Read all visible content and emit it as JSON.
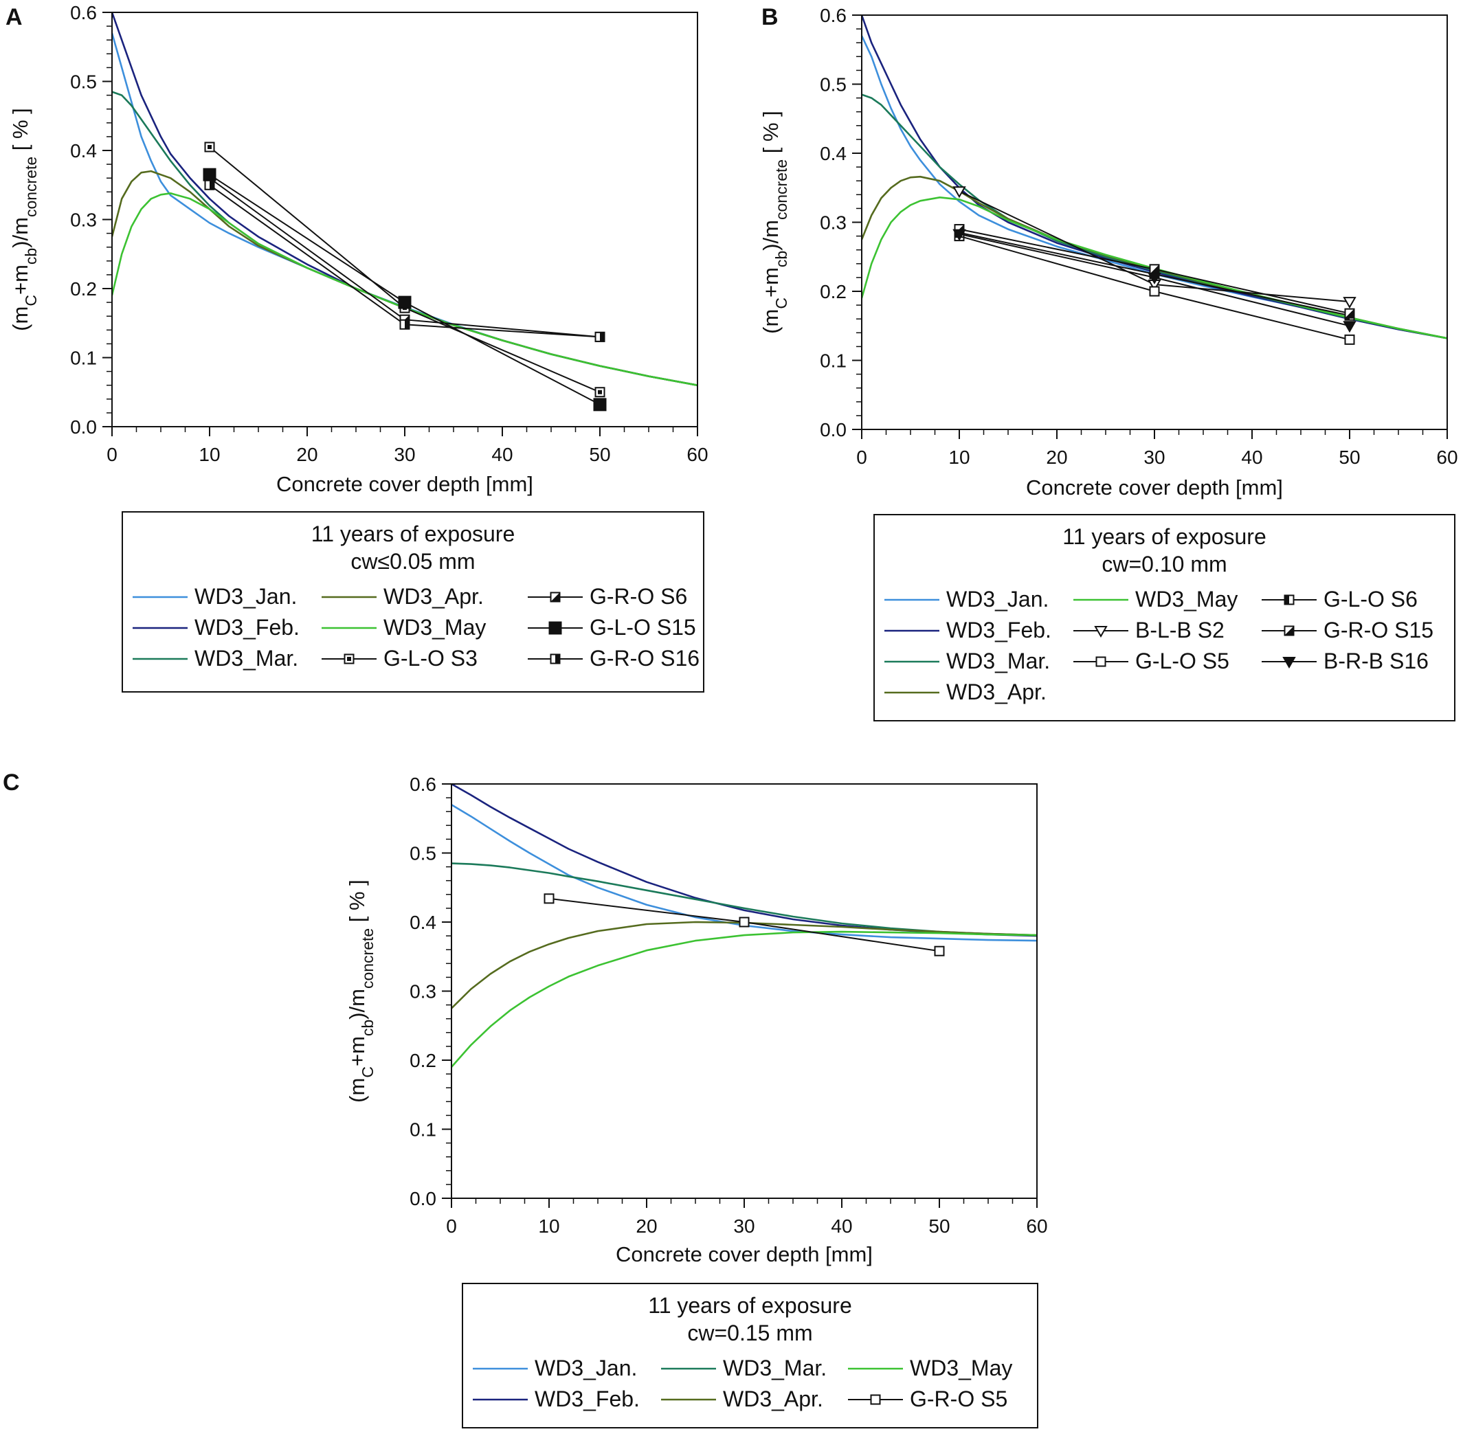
{
  "chart_data": [
    {
      "panel": "A",
      "type": "line",
      "xlabel": "Concrete cover depth [mm]",
      "ylabel": "(mc+mcb)/mconcrete [ % ]",
      "ylabel_parts": {
        "open": "(m",
        "sub1": "C",
        "plus": "+m",
        "sub2": "cb",
        "close": ")/m",
        "sub3": "concrete",
        "unit": " [ % ]"
      },
      "xlim": [
        0,
        60
      ],
      "ylim": [
        0,
        0.6
      ],
      "xticks": [
        "0",
        "10",
        "20",
        "30",
        "40",
        "50",
        "60"
      ],
      "yticks": [
        "0.0",
        "0.1",
        "0.2",
        "0.3",
        "0.4",
        "0.5",
        "0.6"
      ],
      "legend_title": [
        "11 years of exposure",
        "cw≤0.05 mm"
      ],
      "series": [
        {
          "name": "WD3_Jan.",
          "kind": "curve",
          "color": "#3d8fdc",
          "x": [
            0,
            1,
            2,
            3,
            4,
            5,
            6,
            8,
            10,
            12,
            15,
            20,
            25,
            30,
            35,
            40,
            45,
            50,
            55,
            60
          ],
          "values": [
            0.57,
            0.52,
            0.47,
            0.42,
            0.385,
            0.355,
            0.335,
            0.315,
            0.295,
            0.28,
            0.26,
            0.23,
            0.2,
            0.173,
            0.148,
            0.125,
            0.105,
            0.088,
            0.073,
            0.06
          ]
        },
        {
          "name": "WD3_Feb.",
          "kind": "curve",
          "color": "#1a237e",
          "x": [
            0,
            1,
            2,
            3,
            4,
            5,
            6,
            8,
            10,
            12,
            15,
            20,
            25,
            30,
            35,
            40,
            45,
            50,
            55,
            60
          ],
          "values": [
            0.6,
            0.56,
            0.52,
            0.48,
            0.45,
            0.42,
            0.395,
            0.36,
            0.33,
            0.305,
            0.275,
            0.235,
            0.2,
            0.172,
            0.147,
            0.125,
            0.105,
            0.088,
            0.073,
            0.06
          ]
        },
        {
          "name": "WD3_Mar.",
          "kind": "curve",
          "color": "#1b7a5a",
          "x": [
            0,
            1,
            2,
            3,
            4,
            5,
            6,
            8,
            10,
            12,
            15,
            20,
            25,
            30,
            35,
            40,
            45,
            50,
            55,
            60
          ],
          "values": [
            0.485,
            0.48,
            0.465,
            0.445,
            0.425,
            0.405,
            0.385,
            0.35,
            0.32,
            0.295,
            0.265,
            0.23,
            0.2,
            0.172,
            0.147,
            0.125,
            0.105,
            0.088,
            0.073,
            0.06
          ]
        },
        {
          "name": "WD3_Apr.",
          "kind": "curve",
          "color": "#556b1e",
          "x": [
            0,
            1,
            2,
            3,
            4,
            5,
            6,
            8,
            10,
            12,
            15,
            20,
            25,
            30,
            35,
            40,
            45,
            50,
            55,
            60
          ],
          "values": [
            0.275,
            0.33,
            0.355,
            0.368,
            0.37,
            0.365,
            0.36,
            0.34,
            0.315,
            0.29,
            0.262,
            0.23,
            0.2,
            0.172,
            0.147,
            0.125,
            0.105,
            0.088,
            0.073,
            0.06
          ]
        },
        {
          "name": "WD3_May",
          "kind": "curve",
          "color": "#3cc232",
          "x": [
            0,
            1,
            2,
            3,
            4,
            5,
            6,
            8,
            10,
            12,
            15,
            20,
            25,
            30,
            35,
            40,
            45,
            50,
            55,
            60
          ],
          "values": [
            0.19,
            0.25,
            0.29,
            0.315,
            0.33,
            0.336,
            0.338,
            0.33,
            0.315,
            0.295,
            0.265,
            0.23,
            0.2,
            0.172,
            0.147,
            0.125,
            0.105,
            0.088,
            0.073,
            0.06
          ]
        },
        {
          "name": "G-L-O S3",
          "kind": "markers",
          "marker": "sq-dot",
          "x": [
            10,
            30,
            50
          ],
          "values": [
            0.405,
            0.172,
            0.05
          ]
        },
        {
          "name": "G-R-O S6",
          "kind": "markers",
          "marker": "sq-diag",
          "x": [
            10,
            30,
            50
          ],
          "values": [
            0.36,
            0.155,
            0.13
          ]
        },
        {
          "name": "G-L-O S15",
          "kind": "markers",
          "marker": "sq-filled",
          "x": [
            10,
            30,
            50
          ],
          "values": [
            0.365,
            0.18,
            0.032
          ]
        },
        {
          "name": "G-R-O S16",
          "kind": "markers",
          "marker": "sq-half",
          "x": [
            10,
            30,
            50
          ],
          "values": [
            0.35,
            0.148,
            0.13
          ]
        }
      ],
      "legend_columns": [
        [
          "WD3_Jan.",
          "WD3_Feb.",
          "WD3_Mar."
        ],
        [
          "WD3_Apr.",
          "WD3_May",
          "G-L-O S3"
        ],
        [
          "G-R-O S6",
          "G-L-O S15",
          "G-R-O S16"
        ]
      ]
    },
    {
      "panel": "B",
      "type": "line",
      "xlabel": "Concrete cover depth [mm]",
      "ylabel": "(mc+mcb)/mconcrete [ % ]",
      "ylabel_parts": {
        "open": "(m",
        "sub1": "C",
        "plus": "+m",
        "sub2": "cb",
        "close": ")/m",
        "sub3": "concrete",
        "unit": " [ % ]"
      },
      "xlim": [
        0,
        60
      ],
      "ylim": [
        0,
        0.6
      ],
      "xticks": [
        "0",
        "10",
        "20",
        "30",
        "40",
        "50",
        "60"
      ],
      "yticks": [
        "0.0",
        "0.1",
        "0.2",
        "0.3",
        "0.4",
        "0.5",
        "0.6"
      ],
      "legend_title": [
        "11 years of exposure",
        "cw=0.10 mm"
      ],
      "series": [
        {
          "name": "WD3_Jan.",
          "kind": "curve",
          "color": "#3d8fdc",
          "x": [
            0,
            1,
            2,
            3,
            4,
            5,
            6,
            8,
            10,
            12,
            15,
            20,
            25,
            30,
            35,
            40,
            45,
            50,
            55,
            60
          ],
          "values": [
            0.57,
            0.54,
            0.5,
            0.465,
            0.435,
            0.41,
            0.39,
            0.355,
            0.33,
            0.31,
            0.29,
            0.265,
            0.245,
            0.225,
            0.208,
            0.192,
            0.177,
            0.16,
            0.145,
            0.132
          ]
        },
        {
          "name": "WD3_Feb.",
          "kind": "curve",
          "color": "#1a237e",
          "x": [
            0,
            1,
            2,
            3,
            4,
            5,
            6,
            8,
            10,
            12,
            15,
            20,
            25,
            30,
            35,
            40,
            45,
            50,
            55,
            60
          ],
          "values": [
            0.6,
            0.56,
            0.53,
            0.5,
            0.47,
            0.445,
            0.42,
            0.38,
            0.35,
            0.325,
            0.3,
            0.27,
            0.248,
            0.228,
            0.21,
            0.193,
            0.177,
            0.16,
            0.145,
            0.132
          ]
        },
        {
          "name": "WD3_Mar.",
          "kind": "curve",
          "color": "#1b7a5a",
          "x": [
            0,
            1,
            2,
            3,
            4,
            5,
            6,
            8,
            10,
            12,
            15,
            20,
            25,
            30,
            35,
            40,
            45,
            50,
            55,
            60
          ],
          "values": [
            0.485,
            0.48,
            0.47,
            0.455,
            0.44,
            0.425,
            0.41,
            0.38,
            0.355,
            0.332,
            0.305,
            0.273,
            0.25,
            0.23,
            0.212,
            0.195,
            0.178,
            0.161,
            0.146,
            0.132
          ]
        },
        {
          "name": "WD3_Apr.",
          "kind": "curve",
          "color": "#556b1e",
          "x": [
            0,
            1,
            2,
            3,
            4,
            5,
            6,
            8,
            10,
            12,
            15,
            20,
            25,
            30,
            35,
            40,
            45,
            50,
            55,
            60
          ],
          "values": [
            0.275,
            0.31,
            0.335,
            0.35,
            0.36,
            0.365,
            0.366,
            0.36,
            0.345,
            0.328,
            0.305,
            0.275,
            0.252,
            0.232,
            0.213,
            0.196,
            0.179,
            0.162,
            0.146,
            0.132
          ]
        },
        {
          "name": "WD3_May",
          "kind": "curve",
          "color": "#3cc232",
          "x": [
            0,
            1,
            2,
            3,
            4,
            5,
            6,
            8,
            10,
            12,
            15,
            20,
            25,
            30,
            35,
            40,
            45,
            50,
            55,
            60
          ],
          "values": [
            0.19,
            0.24,
            0.275,
            0.3,
            0.315,
            0.325,
            0.331,
            0.336,
            0.333,
            0.323,
            0.303,
            0.275,
            0.253,
            0.233,
            0.214,
            0.196,
            0.179,
            0.162,
            0.146,
            0.132
          ]
        },
        {
          "name": "B-L-B S2",
          "kind": "markers",
          "marker": "tri-open",
          "x": [
            10,
            30,
            50
          ],
          "values": [
            0.345,
            0.21,
            0.185
          ]
        },
        {
          "name": "G-L-O S5",
          "kind": "markers",
          "marker": "sq-open",
          "x": [
            10,
            30,
            50
          ],
          "values": [
            0.28,
            0.2,
            0.13
          ]
        },
        {
          "name": "G-L-O S6",
          "kind": "markers",
          "marker": "sq-vhalf",
          "x": [
            10,
            30,
            50
          ],
          "values": [
            0.285,
            0.225,
            0.165
          ]
        },
        {
          "name": "G-R-O S15",
          "kind": "markers",
          "marker": "sq-diag",
          "x": [
            10,
            30,
            50
          ],
          "values": [
            0.29,
            0.232,
            0.168
          ]
        },
        {
          "name": "B-R-B S16",
          "kind": "markers",
          "marker": "tri-filled",
          "x": [
            10,
            30,
            50
          ],
          "values": [
            0.283,
            0.22,
            0.15
          ]
        }
      ],
      "legend_columns": [
        [
          "WD3_Jan.",
          "WD3_Feb.",
          "WD3_Mar.",
          "WD3_Apr."
        ],
        [
          "WD3_May",
          "B-L-B S2",
          "G-L-O S5"
        ],
        [
          "G-L-O S6",
          "G-R-O S15",
          "B-R-B S16"
        ]
      ]
    },
    {
      "panel": "C",
      "type": "line",
      "xlabel": "Concrete cover depth [mm]",
      "ylabel": "(mc+mcb)/mconcrete [ % ]",
      "ylabel_parts": {
        "open": "(m",
        "sub1": "C",
        "plus": "+m",
        "sub2": "cb",
        "close": ")/m",
        "sub3": "concrete",
        "unit": " [ % ]"
      },
      "xlim": [
        0,
        60
      ],
      "ylim": [
        0,
        0.6
      ],
      "xticks": [
        "0",
        "10",
        "20",
        "30",
        "40",
        "50",
        "60"
      ],
      "yticks": [
        "0.0",
        "0.1",
        "0.2",
        "0.3",
        "0.4",
        "0.5",
        "0.6"
      ],
      "legend_title": [
        "11 years of exposure",
        "cw=0.15 mm"
      ],
      "series": [
        {
          "name": "WD3_Jan.",
          "kind": "curve",
          "color": "#3d8fdc",
          "x": [
            0,
            2,
            4,
            6,
            8,
            10,
            12,
            15,
            20,
            25,
            30,
            35,
            40,
            45,
            50,
            55,
            60
          ],
          "values": [
            0.57,
            0.553,
            0.535,
            0.517,
            0.5,
            0.484,
            0.468,
            0.45,
            0.425,
            0.407,
            0.395,
            0.387,
            0.382,
            0.378,
            0.376,
            0.374,
            0.373
          ]
        },
        {
          "name": "WD3_Feb.",
          "kind": "curve",
          "color": "#1a237e",
          "x": [
            0,
            2,
            4,
            6,
            8,
            10,
            12,
            15,
            20,
            25,
            30,
            35,
            40,
            45,
            50,
            55,
            60
          ],
          "values": [
            0.6,
            0.584,
            0.567,
            0.551,
            0.536,
            0.521,
            0.506,
            0.487,
            0.458,
            0.435,
            0.417,
            0.404,
            0.395,
            0.389,
            0.385,
            0.382,
            0.38
          ]
        },
        {
          "name": "WD3_Mar.",
          "kind": "curve",
          "color": "#1b7a5a",
          "x": [
            0,
            2,
            4,
            6,
            8,
            10,
            12,
            15,
            20,
            25,
            30,
            35,
            40,
            45,
            50,
            55,
            60
          ],
          "values": [
            0.485,
            0.484,
            0.482,
            0.479,
            0.475,
            0.471,
            0.466,
            0.459,
            0.446,
            0.433,
            0.42,
            0.408,
            0.398,
            0.391,
            0.386,
            0.383,
            0.381
          ]
        },
        {
          "name": "WD3_Apr.",
          "kind": "curve",
          "color": "#556b1e",
          "x": [
            0,
            2,
            4,
            6,
            8,
            10,
            12,
            15,
            20,
            25,
            30,
            35,
            40,
            45,
            50,
            55,
            60
          ],
          "values": [
            0.275,
            0.303,
            0.325,
            0.343,
            0.357,
            0.368,
            0.377,
            0.387,
            0.397,
            0.4,
            0.399,
            0.396,
            0.393,
            0.389,
            0.386,
            0.383,
            0.381
          ]
        },
        {
          "name": "WD3_May",
          "kind": "curve",
          "color": "#3cc232",
          "x": [
            0,
            2,
            4,
            6,
            8,
            10,
            12,
            15,
            20,
            25,
            30,
            35,
            40,
            45,
            50,
            55,
            60
          ],
          "values": [
            0.19,
            0.222,
            0.249,
            0.272,
            0.291,
            0.307,
            0.321,
            0.337,
            0.359,
            0.373,
            0.381,
            0.385,
            0.386,
            0.385,
            0.384,
            0.382,
            0.381
          ]
        },
        {
          "name": "G-R-O S5",
          "kind": "markers",
          "marker": "sq-open",
          "x": [
            10,
            30,
            50
          ],
          "values": [
            0.434,
            0.4,
            0.358
          ]
        }
      ],
      "legend_columns": [
        [
          "WD3_Jan.",
          "WD3_Feb."
        ],
        [
          "WD3_Mar.",
          "WD3_Apr."
        ],
        [
          "WD3_May",
          "G-R-O S5"
        ]
      ]
    }
  ]
}
